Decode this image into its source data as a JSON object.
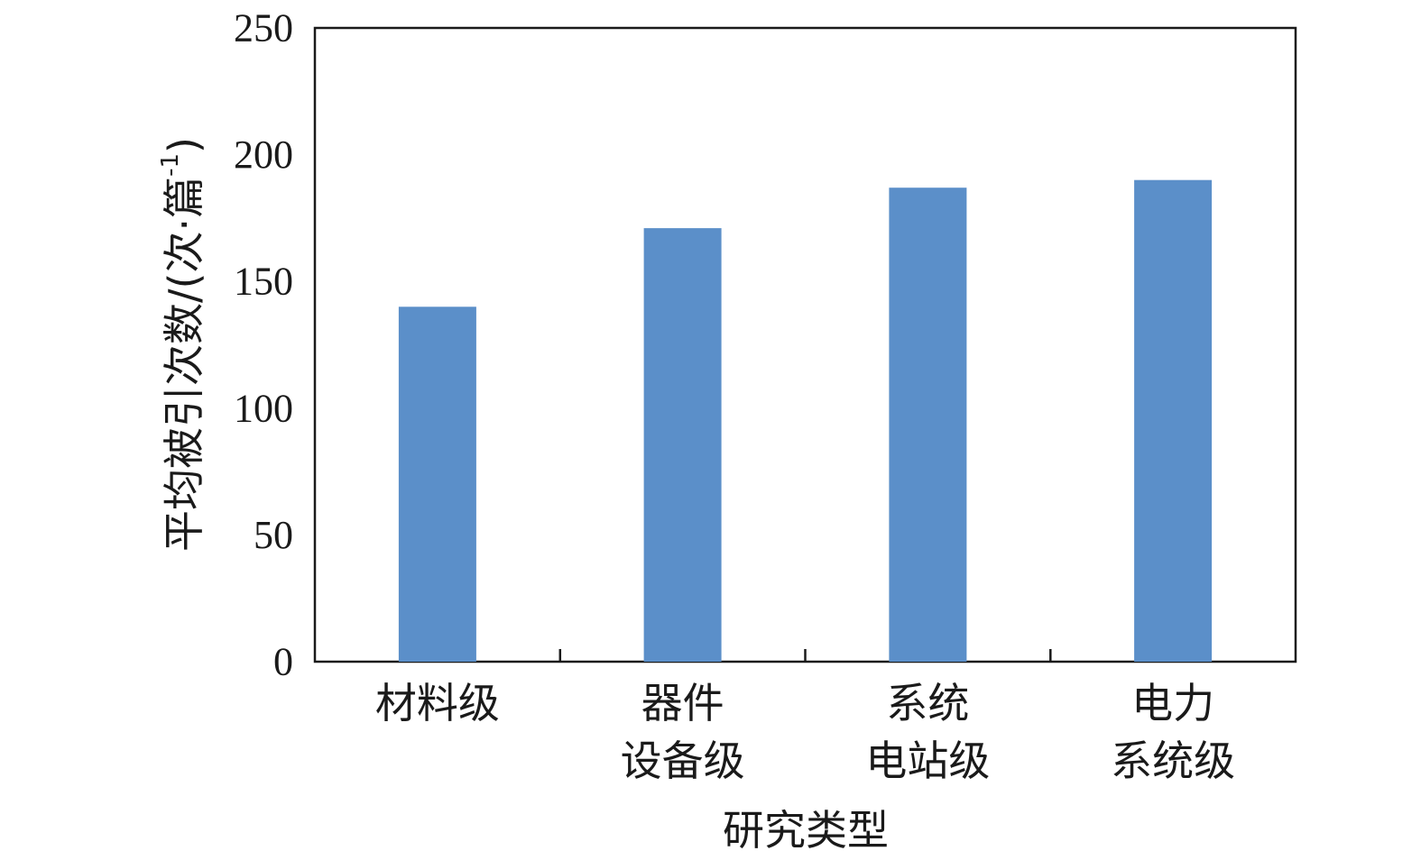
{
  "chart_data": {
    "type": "bar",
    "categories": [
      [
        "材料级"
      ],
      [
        "器件",
        "设备级"
      ],
      [
        "系统",
        "电站级"
      ],
      [
        "电力",
        "系统级"
      ]
    ],
    "values": [
      140,
      171,
      187,
      190
    ],
    "ylim": [
      0,
      250
    ],
    "yticks": [
      0,
      50,
      100,
      150,
      200,
      250
    ],
    "ylabel_main": "平均被引次数/(次·篇",
    "ylabel_sup": "-1",
    "ylabel_close": ")",
    "xlabel": "研究类型",
    "bar_color": "#5b8fc9",
    "grid": false,
    "legend": "none"
  }
}
